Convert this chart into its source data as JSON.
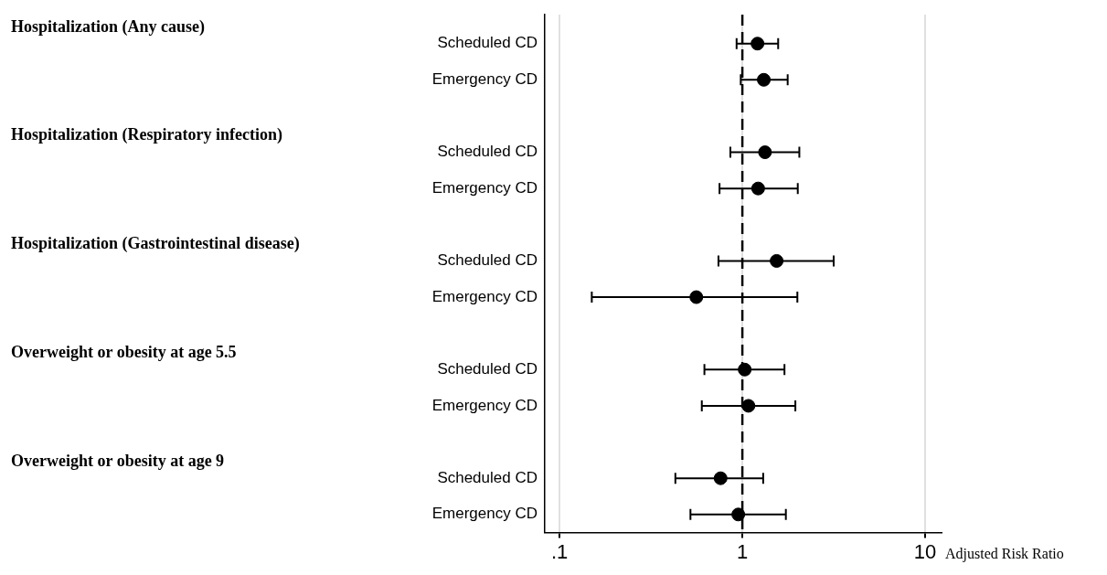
{
  "chart_data": {
    "type": "scatter",
    "orientation": "horizontal",
    "annotations": [
      "Hospitalization (Any cause)",
      "Hospitalization (Respiratory infection)",
      "Hospitalization (Gastrointestinal disease)",
      "Overweight or obesity at age 5.5",
      "Overweight or obesity at age 9"
    ],
    "categories": [
      "Scheduled CD",
      "Emergency CD",
      "Scheduled CD",
      "Emergency CD",
      "Scheduled CD",
      "Emergency CD",
      "Scheduled CD",
      "Emergency CD",
      "Scheduled CD",
      "Emergency CD"
    ],
    "values": [
      1.21,
      1.31,
      1.33,
      1.22,
      1.54,
      0.56,
      1.03,
      1.08,
      0.76,
      0.95
    ],
    "errors": [
      [
        0.93,
        1.57
      ],
      [
        0.98,
        1.77
      ],
      [
        0.86,
        2.05
      ],
      [
        0.75,
        2.01
      ],
      [
        0.74,
        3.16
      ],
      [
        0.15,
        2.0
      ],
      [
        0.62,
        1.7
      ],
      [
        0.6,
        1.95
      ],
      [
        0.43,
        1.3
      ],
      [
        0.52,
        1.73
      ]
    ],
    "color": "#000000",
    "marker": "circle",
    "xlabel": "Adjusted Risk Ratio",
    "log": "x",
    "xlim": [
      0.083,
      12.3
    ],
    "xticks": [
      {
        "value": 0.1,
        "label": ".1"
      },
      1,
      10
    ],
    "grid": "x",
    "ref_lines": [
      {
        "axis": "x",
        "value": 1,
        "line_style": "dashed",
        "color": "#000000"
      }
    ]
  }
}
